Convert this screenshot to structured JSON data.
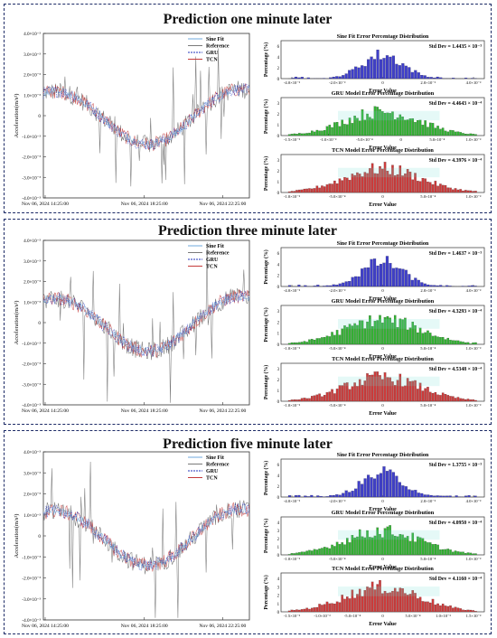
{
  "panels": [
    {
      "title": "Prediction one minute later",
      "ts": {
        "ylabel": "Acceleration(m/s²)",
        "yticks": [
          "4.0×10⁻³",
          "3.0×10⁻³",
          "2.0×10⁻³",
          "1.0×10⁻³",
          "0",
          "-1.0×10⁻³",
          "-2.0×10⁻³",
          "-3.0×10⁻³",
          "-4.0×10⁻³"
        ],
        "xticks": [
          "Nov 06, 2024 14:25:00",
          "Nov 06, 2024 18:25:00",
          "Nov 06, 2024 22:25:00"
        ],
        "legend": [
          "Sine Fit",
          "Reference",
          "GRU",
          "TCN"
        ]
      },
      "hists": [
        {
          "title": "Sine Fit Error Percentage Distribution",
          "std": "Std Dev = 1.4435 × 10⁻³",
          "xticks": [
            "-4.0×10⁻³",
            "-2.0×10⁻³",
            "0",
            "2.0×10⁻³",
            "4.0×10⁻³"
          ],
          "ymax_label": "6"
        },
        {
          "title": "GRU Model Error Percentage Distribution",
          "std": "Std Dev = 4.4643 × 10⁻⁴",
          "xticks": [
            "-1.5×10⁻³",
            "-1.0×10⁻³",
            "-5.0×10⁻⁴",
            "0",
            "5.0×10⁻⁴",
            "1.0×10⁻³"
          ],
          "ymax_label": "3"
        },
        {
          "title": "TCN Model Error Percentage Distribution",
          "std": "Std Dev = 4.3976 × 10⁻⁴",
          "xticks": [
            "-1.0×10⁻³",
            "-5.0×10⁻⁴",
            "0",
            "5.0×10⁻⁴",
            "1.0×10⁻³"
          ],
          "ymax_label": "3"
        }
      ]
    },
    {
      "title": "Prediction three minute later",
      "ts": {
        "ylabel": "Acceleration(m/s²)",
        "yticks": [
          "4.0×10⁻³",
          "3.0×10⁻³",
          "2.0×10⁻³",
          "1.0×10⁻³",
          "0",
          "-1.0×10⁻³",
          "-2.0×10⁻³",
          "-3.0×10⁻³",
          "-4.0×10⁻³"
        ],
        "xticks": [
          "Nov 06, 2024 14:25:00",
          "Nov 06, 2024 18:25:00",
          "Nov 06, 2024 22:25:00"
        ],
        "legend": [
          "Sine Fit",
          "Reference",
          "GRU",
          "TCN"
        ]
      },
      "hists": [
        {
          "title": "Sine Fit Error Percentage Distribution",
          "std": "Std Dev = 1.4637 × 10⁻³",
          "xticks": [
            "-4.0×10⁻³",
            "-2.0×10⁻³",
            "0",
            "2.0×10⁻³",
            "4.0×10⁻³"
          ],
          "ymax_label": "6"
        },
        {
          "title": "GRU Model Error Percentage Distribution",
          "std": "Std Dev = 4.3293 × 10⁻⁴",
          "xticks": [
            "-1.0×10⁻³",
            "-5.0×10⁻⁴",
            "0",
            "5.0×10⁻⁴",
            "1.0×10⁻³"
          ],
          "ymax_label": "3"
        },
        {
          "title": "TCN Model Error Percentage Distribution",
          "std": "Std Dev = 4.5348 × 10⁻⁴",
          "xticks": [
            "-1.0×10⁻³",
            "-5.0×10⁻⁴",
            "0",
            "5.0×10⁻⁴",
            "1.0×10⁻³"
          ],
          "ymax_label": "3"
        }
      ]
    },
    {
      "title": "Prediction five minute later",
      "ts": {
        "ylabel": "Acceleration(m/s²)",
        "yticks": [
          "4.0×10⁻³",
          "3.0×10⁻³",
          "2.0×10⁻³",
          "1.0×10⁻³",
          "0",
          "-1.0×10⁻³",
          "-2.0×10⁻³",
          "-3.0×10⁻³",
          "-4.0×10⁻³"
        ],
        "xticks": [
          "Nov 06, 2024 14:25:00",
          "Nov 06, 2024 18:25:00",
          "Nov 06, 2024 22:25:00"
        ],
        "legend": [
          "Sine Fit",
          "Reference",
          "GRU",
          "TCN"
        ]
      },
      "hists": [
        {
          "title": "Sine Fit Error Percentage Distribution",
          "std": "Std Dev = 1.3755 × 10⁻³",
          "xticks": [
            "-4.0×10⁻³",
            "-2.0×10⁻³",
            "0",
            "2.0×10⁻³",
            "4.0×10⁻³"
          ],
          "ymax_label": "6"
        },
        {
          "title": "GRU Model Error Percentage Distribution",
          "std": "Std Dev = 4.0950 × 10⁻⁴",
          "xticks": [
            "-1.0×10⁻³",
            "-5.0×10⁻⁴",
            "0",
            "5.0×10⁻⁴",
            "1.0×10⁻³"
          ],
          "ymax_label": "4"
        },
        {
          "title": "TCN Model Error Percentage Distribution",
          "std": "Std Dev = 4.1160 × 10⁻⁴",
          "xticks": [
            "-1.5×10⁻³",
            "-1.0×10⁻³",
            "-5.0×10⁻⁴",
            "0",
            "5.0×10⁻⁴",
            "1.0×10⁻³",
            "1.5×10⁻³"
          ],
          "ymax_label": "4"
        }
      ]
    }
  ],
  "colors": {
    "sine": "#6fa8dc",
    "reference": "#7a7a7a",
    "gru": "#2233bb",
    "tcn": "#c43b3b",
    "hist_sine": "#3f3fc9",
    "hist_gru": "#33b233",
    "hist_tcn": "#cc3b3b",
    "panel_border": "#1c2a66"
  },
  "chart_data": [
    {
      "type": "line",
      "ylabel": "Acceleration(m/s²)",
      "ylim": [
        -0.004,
        0.004
      ],
      "x": [
        "Nov 06, 2024 14:25:00",
        "Nov 06, 2024 18:25:00",
        "Nov 06, 2024 22:25:00"
      ],
      "series": [
        {
          "name": "Sine Fit"
        },
        {
          "name": "Reference"
        },
        {
          "name": "GRU"
        },
        {
          "name": "TCN"
        }
      ],
      "series_amplitudes": {
        "Reference": 0.0038,
        "Sine Fit": 0.0015
      }
    },
    {
      "type": "bar",
      "title": "Sine Fit Error Percentage Distribution",
      "xlabel": "Error Value",
      "ylabel": "Percentage (%)",
      "std_dev": 0.0014435,
      "xlim": [
        -0.005,
        0.005
      ]
    },
    {
      "type": "bar",
      "title": "GRU Model Error Percentage Distribution",
      "xlabel": "Error Value",
      "ylabel": "Percentage (%)",
      "std_dev": 0.00044643,
      "xlim": [
        -0.0016,
        0.0016
      ]
    },
    {
      "type": "bar",
      "title": "TCN Model Error Percentage Distribution",
      "xlabel": "Error Value",
      "ylabel": "Percentage (%)",
      "std_dev": 0.00043976,
      "xlim": [
        -0.0013,
        0.0013
      ]
    },
    {
      "type": "bar",
      "title": "Sine Fit Error Percentage Distribution",
      "xlabel": "Error Value",
      "ylabel": "Percentage (%)",
      "std_dev": 0.0014637,
      "xlim": [
        -0.005,
        0.005
      ]
    },
    {
      "type": "bar",
      "title": "GRU Model Error Percentage Distribution",
      "xlabel": "Error Value",
      "ylabel": "Percentage (%)",
      "std_dev": 0.00043293,
      "xlim": [
        -0.0013,
        0.0013
      ]
    },
    {
      "type": "bar",
      "title": "TCN Model Error Percentage Distribution",
      "xlabel": "Error Value",
      "ylabel": "Percentage (%)",
      "std_dev": 0.00045348,
      "xlim": [
        -0.0013,
        0.0013
      ]
    },
    {
      "type": "bar",
      "title": "Sine Fit Error Percentage Distribution",
      "xlabel": "Error Value",
      "ylabel": "Percentage (%)",
      "std_dev": 0.0013755,
      "xlim": [
        -0.005,
        0.005
      ]
    },
    {
      "type": "bar",
      "title": "GRU Model Error Percentage Distribution",
      "xlabel": "Error Value",
      "ylabel": "Percentage (%)",
      "std_dev": 0.0004095,
      "xlim": [
        -0.0013,
        0.0013
      ]
    },
    {
      "type": "bar",
      "title": "TCN Model Error Percentage Distribution",
      "xlabel": "Error Value",
      "ylabel": "Percentage (%)",
      "std_dev": 0.0004116,
      "xlim": [
        -0.0016,
        0.0016
      ]
    }
  ],
  "labels": {
    "error_value": "Error Value",
    "percentage": "Percentage (%)"
  }
}
